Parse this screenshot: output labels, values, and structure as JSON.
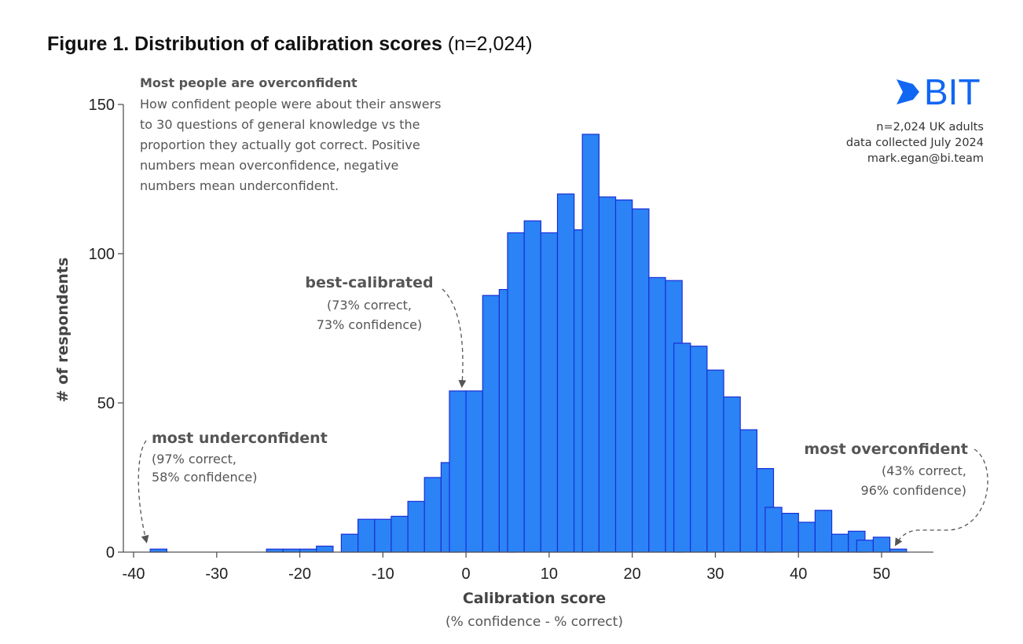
{
  "figure": {
    "title_bold": "Figure 1. Distribution of calibration scores",
    "title_suffix": " (n=2,024)"
  },
  "subtitle": {
    "heading": "Most people are overconfident",
    "lines": [
      "How confident people were about their answers",
      "to 30 questions of general knowledge vs the",
      "proportion they actually got correct. Positive",
      "numbers mean overconfidence, negative",
      "numbers mean underconfident."
    ]
  },
  "brand": {
    "logo_text": "BIT",
    "logo_color": "#1167f2",
    "notes": [
      "n=2,024 UK adults",
      "data collected July 2024",
      "mark.egan@bi.team"
    ]
  },
  "colors": {
    "bar_fill": "#2b83f6",
    "bar_stroke": "#1a2fd6",
    "axis": "#555555",
    "annotation": "#555555"
  },
  "chart_data": {
    "type": "bar",
    "xlabel": "Calibration score",
    "xlabel_sub": "(% confidence - % correct)",
    "ylabel": "# of respondents",
    "xlim": [
      -42,
      56
    ],
    "ylim": [
      0,
      150
    ],
    "bin_width": 2,
    "xticks": [
      -40,
      -30,
      -20,
      -10,
      0,
      10,
      20,
      30,
      40,
      50
    ],
    "xtick_labels": [
      "-40",
      "-30",
      "-20",
      "-10",
      "0",
      "10",
      "20",
      "30",
      "40",
      "50"
    ],
    "yticks": [
      0,
      50,
      100,
      150
    ],
    "ytick_labels": [
      "0",
      "50",
      "100",
      "150"
    ],
    "grid": false,
    "bins": [
      {
        "x0": -38,
        "value": 1
      },
      {
        "x0": -24,
        "value": 1
      },
      {
        "x0": -22,
        "value": 1
      },
      {
        "x0": -20,
        "value": 1
      },
      {
        "x0": -18,
        "value": 2
      },
      {
        "x0": -15,
        "value": 6
      },
      {
        "x0": -13,
        "value": 11
      },
      {
        "x0": -11,
        "value": 11
      },
      {
        "x0": -9,
        "value": 12
      },
      {
        "x0": -7,
        "value": 17
      },
      {
        "x0": -5,
        "value": 25
      },
      {
        "x0": -3,
        "value": 30
      },
      {
        "x0": -2,
        "value": 54
      },
      {
        "x0": 0,
        "value": 54
      },
      {
        "x0": 2,
        "value": 86
      },
      {
        "x0": 4,
        "value": 88
      },
      {
        "x0": 5,
        "value": 107
      },
      {
        "x0": 7,
        "value": 111
      },
      {
        "x0": 9,
        "value": 107
      },
      {
        "x0": 11,
        "value": 120
      },
      {
        "x0": 13,
        "value": 108
      },
      {
        "x0": 14,
        "value": 140
      },
      {
        "x0": 16,
        "value": 119
      },
      {
        "x0": 18,
        "value": 118
      },
      {
        "x0": 20,
        "value": 115
      },
      {
        "x0": 22,
        "value": 92
      },
      {
        "x0": 24,
        "value": 91
      },
      {
        "x0": 25,
        "value": 70
      },
      {
        "x0": 27,
        "value": 69
      },
      {
        "x0": 29,
        "value": 61
      },
      {
        "x0": 31,
        "value": 52
      },
      {
        "x0": 33,
        "value": 41
      },
      {
        "x0": 35,
        "value": 28
      },
      {
        "x0": 36,
        "value": 15
      },
      {
        "x0": 38,
        "value": 13
      },
      {
        "x0": 40,
        "value": 10
      },
      {
        "x0": 42,
        "value": 14
      },
      {
        "x0": 44,
        "value": 6
      },
      {
        "x0": 46,
        "value": 7
      },
      {
        "x0": 47,
        "value": 4
      },
      {
        "x0": 49,
        "value": 5
      },
      {
        "x0": 51,
        "value": 1
      }
    ],
    "annotations": [
      {
        "title": "best-calibrated",
        "lines": [
          "(73% correct,",
          "73% confidence)"
        ],
        "target_x": 0,
        "target_y": 54
      },
      {
        "title": "most underconfident",
        "lines": [
          "(97% correct,",
          "58% confidence)"
        ],
        "target_x": -38,
        "target_y": 1
      },
      {
        "title": "most overconfident",
        "lines": [
          "(43% correct,",
          "96% confidence)"
        ],
        "target_x": 51,
        "target_y": 1
      }
    ]
  }
}
